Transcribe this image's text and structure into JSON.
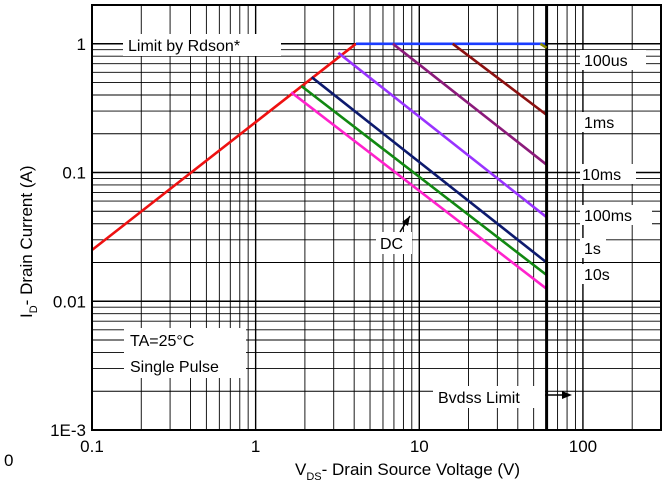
{
  "chart_data": {
    "type": "line",
    "xscale": "log",
    "yscale": "log",
    "xlim": [
      0.1,
      300
    ],
    "ylim": [
      0.001,
      2
    ],
    "xlabel_main": "V",
    "xlabel_sub": "DS",
    "xlabel_rest": "- Drain Source Voltage (V)",
    "ylabel_main": "I",
    "ylabel_sub": "D",
    "ylabel_rest": "- Drain Current (A)",
    "x_ticks": [
      {
        "value": 0.1,
        "label": "0.1"
      },
      {
        "value": 1,
        "label": "1"
      },
      {
        "value": 10,
        "label": "10"
      },
      {
        "value": 100,
        "label": "100"
      }
    ],
    "y_ticks": [
      {
        "value": 1,
        "label": "1"
      },
      {
        "value": 0.1,
        "label": "0.1"
      },
      {
        "value": 0.01,
        "label": "0.01"
      },
      {
        "value": 0.001,
        "label": "1E-3"
      }
    ],
    "stray_label": "0",
    "grid": true,
    "series": [
      {
        "name": "Limit by Rdson*",
        "color": "#ee1111",
        "points": [
          [
            0.1,
            0.025
          ],
          [
            4.1,
            1.0
          ]
        ]
      },
      {
        "name": "100us",
        "color": "#1a3cff",
        "points": [
          [
            4.1,
            1.0
          ],
          [
            60,
            1.0
          ]
        ]
      },
      {
        "name": "1ms",
        "color": "#8b1010",
        "points": [
          [
            16,
            1.0
          ],
          [
            60,
            0.28
          ]
        ]
      },
      {
        "name": "10ms",
        "color": "#8b1a7a",
        "points": [
          [
            6.9,
            1.0
          ],
          [
            60,
            0.115
          ]
        ]
      },
      {
        "name": "100ms",
        "color": "#9933ff",
        "points": [
          [
            3.2,
            0.85
          ],
          [
            60,
            0.045
          ]
        ]
      },
      {
        "name": "1s",
        "color": "#0d1a6e",
        "points": [
          [
            2.2,
            0.55
          ],
          [
            60,
            0.02
          ]
        ]
      },
      {
        "name": "10s",
        "color": "#118811",
        "points": [
          [
            1.9,
            0.47
          ],
          [
            60,
            0.016
          ]
        ]
      },
      {
        "name": "DC",
        "color": "#ff22cc",
        "points": [
          [
            1.65,
            0.42
          ],
          [
            60,
            0.0125
          ]
        ]
      },
      {
        "name": "Bvdss Limit",
        "color": "#000000",
        "points": [
          [
            60,
            0.001
          ],
          [
            60,
            2
          ]
        ]
      }
    ],
    "extra_segments": [
      {
        "color": "#888800",
        "points": [
          [
            55,
            1.0
          ],
          [
            60,
            0.93
          ]
        ]
      }
    ],
    "annotations": {
      "rdson": "Limit by Rdson*",
      "t100us": "100us",
      "t1ms": "1ms",
      "t10ms": "10ms",
      "t100ms": "100ms",
      "t1s": "1s",
      "t10s": "10s",
      "dc": "DC",
      "ta": "TA=25°C",
      "pulse": "Single Pulse",
      "bvdss": "Bvdss Limit"
    }
  }
}
